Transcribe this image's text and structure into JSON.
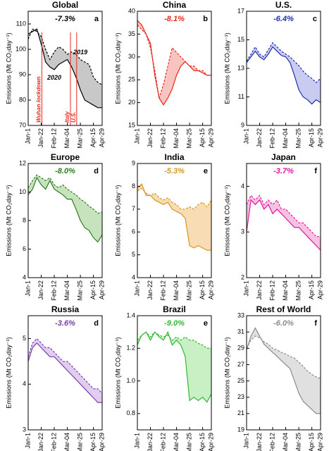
{
  "chart_data": [
    {
      "type": "line",
      "title": "Global",
      "annotation": "-7.3%",
      "annotation_color": "#000000",
      "panel": "a",
      "ylabel": "Emissions (Mt CO₂day⁻¹)",
      "x": [
        "Jan-1",
        "Jan-8",
        "Jan-15",
        "Jan-22",
        "Jan-29",
        "Feb-5",
        "Feb-12",
        "Feb-19",
        "Feb-26",
        "Mar-4",
        "Mar-11",
        "Mar-18",
        "Mar-25",
        "Apr-1",
        "Apr-8",
        "Apr-15",
        "Apr-22",
        "Apr-29"
      ],
      "xlim": [
        "Jan-1",
        "Apr-29"
      ],
      "xticks": [
        "Jan-1",
        "Jan-22",
        "Feb-12",
        "Mar-04",
        "Mar-25",
        "Apr-15",
        "Apr-29"
      ],
      "ylim": [
        70,
        115
      ],
      "yticks": [
        70,
        80,
        90,
        100,
        110
      ],
      "fill": "#c8c8c8",
      "events": [
        {
          "text": "Wuhan lockdown",
          "x": "Jan-23"
        },
        {
          "text": "Italy",
          "x": "Mar-09"
        },
        {
          "text": "U.S.",
          "x": "Mar-19"
        }
      ],
      "event_color": "#e8291c",
      "series": [
        {
          "name": "2020",
          "color": "#000000",
          "dash": false,
          "values": [
            106,
            107,
            108,
            102,
            95,
            93,
            92,
            94,
            95,
            96,
            93,
            89,
            84,
            80,
            79,
            78,
            77,
            77
          ]
        },
        {
          "name": "2019",
          "color": "#000000",
          "dash": true,
          "values": [
            104,
            108,
            107,
            105,
            100,
            96,
            99,
            101,
            100,
            98,
            99,
            98,
            96,
            95,
            94,
            89,
            87,
            86
          ]
        }
      ]
    },
    {
      "type": "line",
      "title": "China",
      "annotation": "-8.1%",
      "annotation_color": "#e8291c",
      "panel": "b",
      "ylabel": "Emissions (Mt CO₂day⁻¹)",
      "x": [
        "Jan-1",
        "Jan-8",
        "Jan-15",
        "Jan-22",
        "Jan-29",
        "Feb-5",
        "Feb-12",
        "Feb-19",
        "Feb-26",
        "Mar-4",
        "Mar-11",
        "Mar-18",
        "Mar-25",
        "Apr-1",
        "Apr-8",
        "Apr-15",
        "Apr-22",
        "Apr-29"
      ],
      "xlim": [
        "Jan-1",
        "Apr-29"
      ],
      "xticks": [
        "Jan-1",
        "Jan-22",
        "Feb-12",
        "Mar-04",
        "Mar-25",
        "Apr-15",
        "Apr-29"
      ],
      "ylim": [
        15,
        40
      ],
      "yticks": [
        15,
        20,
        25,
        30,
        35,
        40
      ],
      "fill": "#f7c4c0",
      "series": [
        {
          "color": "#e8291c",
          "dash": false,
          "values": [
            38,
            37,
            35,
            33,
            26,
            21,
            19.5,
            21,
            23,
            26,
            28,
            29,
            28,
            27,
            27,
            26.5,
            26,
            26
          ]
        },
        {
          "color": "#e8291c",
          "dash": true,
          "values": [
            37,
            36,
            35,
            32,
            27,
            21,
            24,
            28,
            32,
            31,
            30,
            29,
            28,
            28,
            27,
            27,
            26,
            26
          ]
        }
      ]
    },
    {
      "type": "line",
      "title": "U.S.",
      "annotation": "-6.4%",
      "annotation_color": "#1f2fa8",
      "panel": "c",
      "ylabel": "Emissions (Mt CO₂day⁻¹)",
      "x": [
        "Jan-1",
        "Jan-8",
        "Jan-15",
        "Jan-22",
        "Jan-29",
        "Feb-5",
        "Feb-12",
        "Feb-19",
        "Feb-26",
        "Mar-4",
        "Mar-11",
        "Mar-18",
        "Mar-25",
        "Apr-1",
        "Apr-8",
        "Apr-15",
        "Apr-22",
        "Apr-29"
      ],
      "xlim": [
        "Jan-1",
        "Apr-29"
      ],
      "xticks": [
        "Jan-1",
        "Jan-22",
        "Feb-12",
        "Mar-04",
        "Mar-25",
        "Apr-15",
        "Apr-29"
      ],
      "ylim": [
        9,
        17
      ],
      "yticks": [
        9,
        11,
        13,
        15,
        17
      ],
      "fill": "#c9cbf0",
      "series": [
        {
          "color": "#1f2fa8",
          "dash": false,
          "values": [
            13.4,
            13.8,
            14.2,
            13.8,
            13.6,
            14,
            14.5,
            14.2,
            13.9,
            13.8,
            13.4,
            12.5,
            11.5,
            11,
            10.8,
            10.5,
            10.8,
            10.6
          ]
        },
        {
          "color": "#1f2fa8",
          "dash": true,
          "values": [
            13.5,
            14,
            14.5,
            14,
            13.8,
            14.3,
            14.8,
            14.5,
            14.2,
            14,
            13.8,
            13.5,
            13.2,
            12.8,
            12.5,
            12.3,
            12,
            12.3
          ]
        }
      ]
    },
    {
      "type": "line",
      "title": "Europe",
      "annotation": "-8.0%",
      "annotation_color": "#2e7d1f",
      "panel": "d",
      "ylabel": "Emissions (Mt CO₂day⁻¹)",
      "x": [
        "Jan-1",
        "Jan-8",
        "Jan-15",
        "Jan-22",
        "Jan-29",
        "Feb-5",
        "Feb-12",
        "Feb-19",
        "Feb-26",
        "Mar-4",
        "Mar-11",
        "Mar-18",
        "Mar-25",
        "Apr-1",
        "Apr-8",
        "Apr-15",
        "Apr-22",
        "Apr-29"
      ],
      "xlim": [
        "Jan-1",
        "Apr-29"
      ],
      "xticks": [
        "Jan-1",
        "Jan-22",
        "Feb-12",
        "Mar-04",
        "Mar-25",
        "Apr-15",
        "Apr-29"
      ],
      "ylim": [
        4,
        12
      ],
      "yticks": [
        4,
        6,
        8,
        10,
        12
      ],
      "fill": "#c6e3bd",
      "series": [
        {
          "color": "#2e7d1f",
          "dash": false,
          "values": [
            9.8,
            10.2,
            11,
            10.5,
            10.2,
            10.8,
            10.2,
            10,
            9.8,
            9.5,
            9.5,
            8.8,
            8,
            7.5,
            7.3,
            6.8,
            6.5,
            7
          ]
        },
        {
          "color": "#2e7d1f",
          "dash": true,
          "values": [
            10.3,
            10.8,
            11.2,
            11,
            10.8,
            11,
            10.5,
            10.3,
            10.5,
            10.2,
            10,
            9.8,
            9.5,
            9.3,
            9,
            8.8,
            8.5,
            8.6
          ]
        }
      ]
    },
    {
      "type": "line",
      "title": "India",
      "annotation": "-5.3%",
      "annotation_color": "#d9971c",
      "panel": "e",
      "ylabel": "Emissions (Mt CO₂day⁻¹)",
      "x": [
        "Jan-1",
        "Jan-8",
        "Jan-15",
        "Jan-22",
        "Jan-29",
        "Feb-5",
        "Feb-12",
        "Feb-19",
        "Feb-26",
        "Mar-4",
        "Mar-11",
        "Mar-18",
        "Mar-25",
        "Apr-1",
        "Apr-8",
        "Apr-15",
        "Apr-22",
        "Apr-29"
      ],
      "xlim": [
        "Jan-1",
        "Apr-29"
      ],
      "xticks": [
        "Jan-1",
        "Jan-22",
        "Feb-12",
        "Mar-04",
        "Mar-25",
        "Apr-15",
        "Apr-29"
      ],
      "ylim": [
        4,
        9
      ],
      "yticks": [
        4,
        5,
        6,
        7,
        8,
        9
      ],
      "fill": "#f7dcb4",
      "series": [
        {
          "color": "#d9971c",
          "dash": false,
          "values": [
            7.9,
            8.1,
            7.6,
            7.6,
            7.4,
            7.3,
            7.2,
            7.3,
            7.0,
            6.9,
            6.8,
            6.6,
            5.4,
            5.3,
            5.4,
            5.3,
            5.2,
            5.2
          ]
        },
        {
          "color": "#d9971c",
          "dash": true,
          "values": [
            7.8,
            7.9,
            7.7,
            7.6,
            7.7,
            7.5,
            7.4,
            7.5,
            7.3,
            7.2,
            7.0,
            7.0,
            7.1,
            7.0,
            7.2,
            7.3,
            7.1,
            7.4
          ]
        }
      ]
    },
    {
      "type": "line",
      "title": "Japan",
      "annotation": "-3.7%",
      "annotation_color": "#e0199a",
      "panel": "f",
      "ylabel": "Emissions (Mt CO₂day⁻¹)",
      "x": [
        "Jan-1",
        "Jan-8",
        "Jan-15",
        "Jan-22",
        "Jan-29",
        "Feb-5",
        "Feb-12",
        "Feb-19",
        "Feb-26",
        "Mar-4",
        "Mar-11",
        "Mar-18",
        "Mar-25",
        "Apr-1",
        "Apr-8",
        "Apr-15",
        "Apr-22",
        "Apr-29"
      ],
      "xlim": [
        "Jan-1",
        "Apr-29"
      ],
      "xticks": [
        "Jan-1",
        "Jan-22",
        "Feb-12",
        "Mar-04",
        "Mar-25",
        "Apr-15",
        "Apr-29"
      ],
      "ylim": [
        2,
        4.5
      ],
      "yticks": [
        2,
        3,
        4
      ],
      "fill": "#f5c2e2",
      "series": [
        {
          "color": "#e0199a",
          "dash": false,
          "values": [
            3.0,
            3.7,
            3.6,
            3.7,
            3.5,
            3.6,
            3.4,
            3.5,
            3.4,
            3.3,
            3.2,
            3.1,
            3.1,
            3.0,
            2.9,
            2.8,
            2.7,
            2.6
          ]
        },
        {
          "color": "#e0199a",
          "dash": true,
          "values": [
            3.6,
            3.8,
            3.7,
            3.8,
            3.6,
            3.7,
            3.6,
            3.7,
            3.5,
            3.5,
            3.4,
            3.3,
            3.2,
            3.2,
            3.1,
            3.0,
            2.9,
            2.9
          ]
        }
      ]
    },
    {
      "type": "line",
      "title": "Russia",
      "annotation": "-3.6%",
      "annotation_color": "#7a3fa8",
      "panel": "d",
      "ylabel": "Emissions (Mt CO₂day⁻¹)",
      "x": [
        "Jan-1",
        "Jan-8",
        "Jan-15",
        "Jan-22",
        "Jan-29",
        "Feb-5",
        "Feb-12",
        "Feb-19",
        "Feb-26",
        "Mar-4",
        "Mar-11",
        "Mar-18",
        "Mar-25",
        "Apr-1",
        "Apr-8",
        "Apr-15",
        "Apr-22",
        "Apr-29"
      ],
      "xlim": [
        "Jan-1",
        "Apr-29"
      ],
      "xticks": [
        "Jan-1",
        "Jan-22",
        "Feb-12",
        "Mar-04",
        "Mar-25",
        "Apr-15",
        "Apr-29"
      ],
      "ylim": [
        3,
        5.5
      ],
      "yticks": [
        3,
        4,
        5
      ],
      "fill": "#e0cdef",
      "series": [
        {
          "color": "#7a3fa8",
          "dash": false,
          "values": [
            4.5,
            4.8,
            4.9,
            4.8,
            4.7,
            4.6,
            4.6,
            4.5,
            4.4,
            4.3,
            4.2,
            4.1,
            4.0,
            3.9,
            3.8,
            3.7,
            3.6,
            3.6
          ]
        },
        {
          "color": "#7a3fa8",
          "dash": true,
          "values": [
            4.6,
            4.9,
            5.0,
            4.9,
            4.8,
            4.8,
            4.7,
            4.6,
            4.5,
            4.5,
            4.4,
            4.3,
            4.2,
            4.1,
            4.0,
            3.9,
            3.9,
            3.8
          ]
        }
      ]
    },
    {
      "type": "line",
      "title": "Brazil",
      "annotation": "-9.0%",
      "annotation_color": "#33b833",
      "panel": "e",
      "ylabel": "Emissions (Mt CO₂day⁻¹)",
      "x": [
        "Jan-1",
        "Jan-8",
        "Jan-15",
        "Jan-22",
        "Jan-29",
        "Feb-5",
        "Feb-12",
        "Feb-19",
        "Feb-26",
        "Mar-4",
        "Mar-11",
        "Mar-18",
        "Mar-25",
        "Apr-1",
        "Apr-8",
        "Apr-15",
        "Apr-22",
        "Apr-29"
      ],
      "xlim": [
        "Jan-1",
        "Apr-29"
      ],
      "xticks": [
        "Jan-1",
        "Jan-22",
        "Feb-12",
        "Mar-04",
        "Mar-25",
        "Apr-15",
        "Apr-29"
      ],
      "ylim": [
        0.7,
        1.4
      ],
      "yticks": [
        0.8,
        {
          "value": 1,
          "label": "1.0"
        },
        1.2,
        1.4
      ],
      "fill": "#c8f0c4",
      "series": [
        {
          "color": "#33b833",
          "dash": false,
          "values": [
            1.22,
            1.28,
            1.3,
            1.25,
            1.3,
            1.27,
            1.25,
            1.3,
            1.22,
            1.25,
            1.22,
            1.15,
            0.88,
            0.9,
            0.88,
            0.9,
            0.87,
            0.92
          ]
        },
        {
          "color": "#33b833",
          "dash": true,
          "values": [
            1.25,
            1.28,
            1.3,
            1.27,
            1.3,
            1.28,
            1.27,
            1.28,
            1.25,
            1.27,
            1.25,
            1.27,
            1.25,
            1.25,
            1.23,
            1.22,
            1.2,
            1.2
          ]
        }
      ]
    },
    {
      "type": "line",
      "title": "Rest of World",
      "annotation": "-6.0%",
      "annotation_color": "#8c8c8c",
      "panel": "f",
      "ylabel": "Emissions (Mt CO₂day⁻¹)",
      "x": [
        "Jan-1",
        "Jan-8",
        "Jan-15",
        "Jan-22",
        "Jan-29",
        "Feb-5",
        "Feb-12",
        "Feb-19",
        "Feb-26",
        "Mar-4",
        "Mar-11",
        "Mar-18",
        "Mar-25",
        "Apr-1",
        "Apr-8",
        "Apr-15",
        "Apr-22",
        "Apr-29"
      ],
      "xlim": [
        "Jan-1",
        "Apr-29"
      ],
      "xticks": [
        "Jan-1",
        "Jan-22",
        "Feb-12",
        "Mar-04",
        "Mar-25",
        "Apr-15",
        "Apr-29"
      ],
      "ylim": [
        19,
        33
      ],
      "yticks": [
        19,
        21,
        23,
        25,
        27,
        29,
        31,
        33
      ],
      "fill": "#e0e0e0",
      "series": [
        {
          "color": "#8c8c8c",
          "dash": false,
          "values": [
            28.8,
            30.5,
            31.5,
            30.5,
            29.5,
            29,
            28.5,
            28,
            27.5,
            27,
            26.5,
            25,
            23.5,
            22.5,
            22,
            21.5,
            21,
            21
          ]
        },
        {
          "color": "#8c8c8c",
          "dash": true,
          "values": [
            29,
            30,
            30.5,
            30.3,
            29.8,
            29.5,
            29,
            28.8,
            28.5,
            28.3,
            28,
            27.8,
            27.3,
            26.8,
            26.2,
            25.8,
            25.5,
            25.3
          ]
        }
      ]
    }
  ]
}
